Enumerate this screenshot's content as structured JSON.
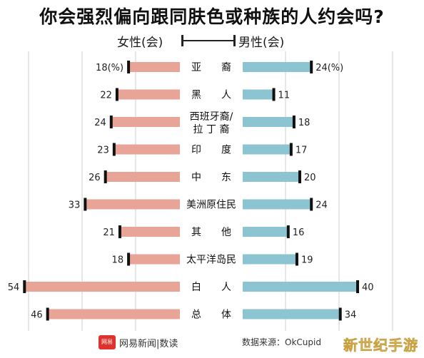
{
  "title": "你会强烈偏向跟同肤色或种族的人约会吗?",
  "legend": {
    "left": "女性(会)",
    "right": "男性(会)"
  },
  "colors": {
    "female": "#e8a597",
    "male": "#8cc4d1",
    "bar_end": "#111111",
    "grid": "#cfcfcf"
  },
  "chart_data": {
    "type": "bar",
    "orientation": "horizontal-diverging",
    "categories": [
      "亚　　裔",
      "黑　　人",
      "西班牙裔/拉 丁 裔",
      "印　　度",
      "中　　东",
      "美洲原住民",
      "其　　他",
      "太平洋岛民",
      "白　　人",
      "总　　体"
    ],
    "series": [
      {
        "name": "女性(会)",
        "values": [
          18,
          22,
          24,
          23,
          26,
          33,
          21,
          18,
          54,
          46
        ],
        "labels": [
          "18(%)",
          "22",
          "24",
          "23",
          "26",
          "33",
          "21",
          "18",
          "54",
          "46"
        ]
      },
      {
        "name": "男性(会)",
        "values": [
          24,
          11,
          18,
          17,
          20,
          24,
          16,
          19,
          40,
          34
        ],
        "labels": [
          "24(%)",
          "11",
          "18",
          "17",
          "20",
          "24",
          "16",
          "19",
          "40",
          "34"
        ]
      }
    ],
    "xlim": [
      0,
      55
    ],
    "grid": true
  },
  "footer": {
    "brand_icon": "网易",
    "brand": "网易新闻|数读",
    "source": "数据来源：OkCupid",
    "watermark": "新世纪手游"
  }
}
